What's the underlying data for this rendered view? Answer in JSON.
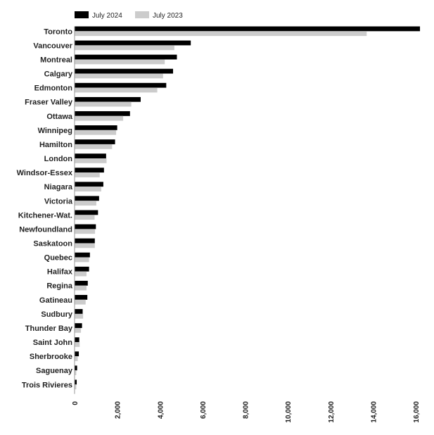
{
  "chart_data": {
    "type": "bar",
    "orientation": "horizontal",
    "categories": [
      "Toronto",
      "Vancouver",
      "Montreal",
      "Calgary",
      "Edmonton",
      "Fraser Valley",
      "Ottawa",
      "Winnipeg",
      "Hamilton",
      "London",
      "Windsor-Essex",
      "Niagara",
      "Victoria",
      "Kitchener-Wat.",
      "Newfoundland",
      "Saskatoon",
      "Quebec",
      "Halifax",
      "Regina",
      "Gatineau",
      "Sudbury",
      "Thunder Bay",
      "Saint John",
      "Sherbrooke",
      "Saguenay",
      "Trois Rivieres"
    ],
    "series": [
      {
        "name": "July 2024",
        "color": "#000000",
        "values": [
          16200,
          5450,
          4800,
          4620,
          4300,
          3100,
          2600,
          2000,
          1900,
          1480,
          1380,
          1350,
          1150,
          1100,
          1000,
          950,
          720,
          680,
          620,
          600,
          380,
          350,
          220,
          200,
          120,
          100
        ]
      },
      {
        "name": "July 2023",
        "color": "#cccccc",
        "values": [
          13700,
          4680,
          4230,
          4150,
          3880,
          2660,
          2280,
          1950,
          1760,
          1500,
          1180,
          1250,
          1020,
          940,
          960,
          950,
          680,
          560,
          560,
          520,
          400,
          300,
          240,
          150,
          80,
          80
        ]
      }
    ],
    "xlim": [
      0,
      16000
    ],
    "x_ticks": [
      "0",
      "2,000",
      "4,000",
      "6,000",
      "8,000",
      "10,000",
      "12,000",
      "14,000",
      "16,000"
    ],
    "x_tick_values": [
      0,
      2000,
      4000,
      6000,
      8000,
      10000,
      12000,
      14000,
      16000
    ],
    "legend_position": "top-left",
    "grid": false
  }
}
